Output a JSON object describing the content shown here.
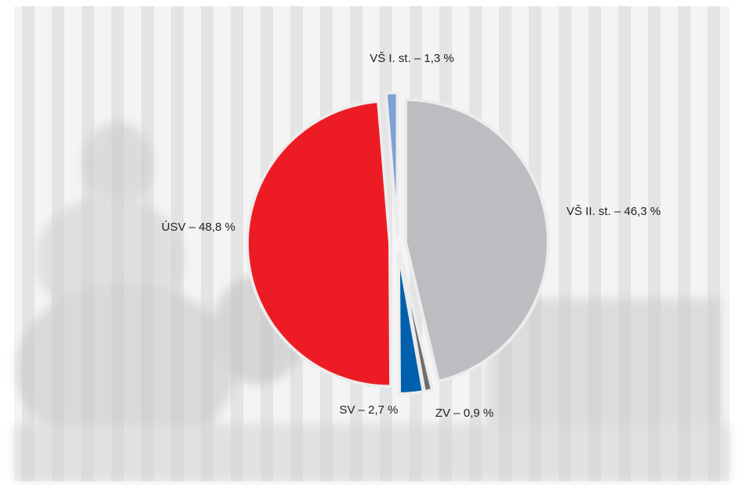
{
  "chart_data": {
    "type": "pie",
    "values": [
      46.3,
      0.9,
      2.7,
      48.8,
      1.3
    ],
    "value_labels": [
      "VŠ II. st. – 46,3 %",
      "ZV – 0,9 %",
      "SV – 2,7 %",
      "ÚSV – 48,8 %",
      "VŠ I. st. – 1,3 %"
    ],
    "colors": [
      "#bcbdc0",
      "#6d6e71",
      "#0060ae",
      "#ed1c24",
      "#7fa1d4"
    ]
  }
}
